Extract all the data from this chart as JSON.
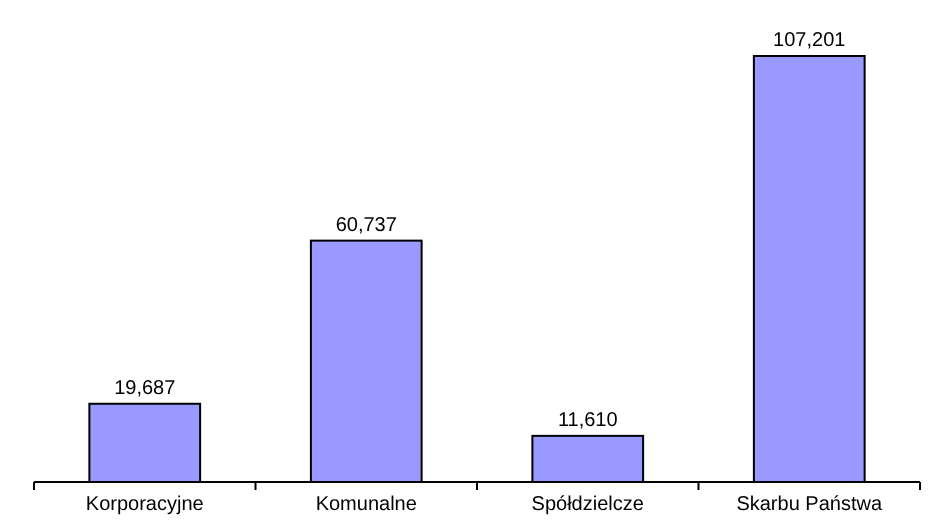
{
  "chart_data": {
    "type": "bar",
    "categories": [
      "Korporacyjne",
      "Komunalne",
      "Spółdzielcze",
      "Skarbu Państwa"
    ],
    "values": [
      19687,
      60737,
      11610,
      107201
    ],
    "value_labels": [
      "19,687",
      "60,737",
      "11,610",
      "107,201"
    ],
    "color": "#9999ff"
  }
}
